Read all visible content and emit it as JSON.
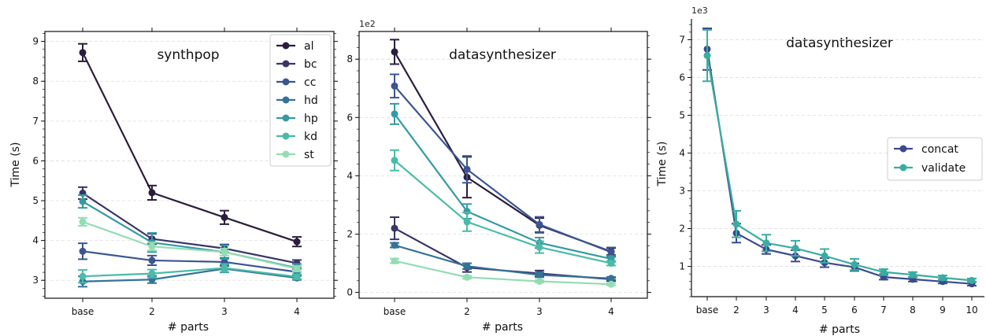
{
  "chart_data": [
    {
      "type": "line",
      "title": "synthpop",
      "xlabel": "# parts",
      "ylabel": "Time (s)",
      "x_scale_label": "",
      "y_scale_label": "",
      "categories": [
        "base",
        "2",
        "3",
        "4"
      ],
      "ylim": [
        2.55,
        9.25
      ],
      "yticks": [
        3,
        4,
        5,
        6,
        7,
        8,
        9
      ],
      "ytick_labels": [
        "3",
        "4",
        "5",
        "6",
        "7",
        "8",
        "9"
      ],
      "grid": "horizontal dashed",
      "legend": "top-right",
      "series": [
        {
          "name": "al",
          "color": "#2b1d3f",
          "values": [
            8.72,
            5.2,
            4.58,
            3.97
          ],
          "errors": [
            0.22,
            0.18,
            0.17,
            0.12
          ]
        },
        {
          "name": "bc",
          "color": "#3a3569",
          "values": [
            5.19,
            4.04,
            3.8,
            3.43
          ],
          "errors": [
            0.15,
            0.13,
            0.1,
            0.08
          ]
        },
        {
          "name": "cc",
          "color": "#3a5592",
          "values": [
            3.73,
            3.5,
            3.46,
            3.21
          ],
          "errors": [
            0.2,
            0.12,
            0.1,
            0.08
          ]
        },
        {
          "name": "hd",
          "color": "#357299",
          "values": [
            2.97,
            3.02,
            3.29,
            3.06
          ],
          "errors": [
            0.13,
            0.09,
            0.09,
            0.05
          ]
        },
        {
          "name": "hp",
          "color": "#359aa4",
          "values": [
            4.98,
            3.95,
            3.71,
            3.31
          ],
          "errors": [
            0.16,
            0.24,
            0.17,
            0.1
          ]
        },
        {
          "name": "kd",
          "color": "#4bbba8",
          "values": [
            3.1,
            3.17,
            3.31,
            3.09
          ],
          "errors": [
            0.16,
            0.1,
            0.1,
            0.06
          ]
        },
        {
          "name": "st",
          "color": "#93ddb4",
          "values": [
            4.47,
            3.85,
            3.71,
            3.29
          ],
          "errors": [
            0.1,
            0.1,
            0.09,
            0.07
          ]
        }
      ]
    },
    {
      "type": "line",
      "title": "datasynthesizer",
      "xlabel": "# parts",
      "ylabel": "",
      "x_scale_label": "",
      "y_scale_label": "1e2",
      "categories": [
        "base",
        "2",
        "3",
        "4"
      ],
      "ylim": [
        -0.2,
        8.95
      ],
      "yticks": [
        0,
        2,
        4,
        6,
        8
      ],
      "ytick_labels": [
        "0",
        "2",
        "4",
        "6",
        "8"
      ],
      "grid": "horizontal dashed",
      "legend": "none",
      "series": [
        {
          "color": "#2b1d3f",
          "values": [
            8.25,
            3.95,
            2.3,
            1.4
          ],
          "errors": [
            0.42,
            0.7,
            0.25,
            0.12
          ]
        },
        {
          "color": "#3a3569",
          "values": [
            2.2,
            0.85,
            0.65,
            0.45
          ],
          "errors": [
            0.38,
            0.15,
            0.1,
            0.06
          ]
        },
        {
          "color": "#3a5592",
          "values": [
            7.08,
            4.22,
            2.33,
            1.38
          ],
          "errors": [
            0.4,
            0.46,
            0.26,
            0.16
          ]
        },
        {
          "color": "#357299",
          "values": [
            1.62,
            0.9,
            0.6,
            0.48
          ],
          "errors": [
            0.08,
            0.1,
            0.08,
            0.05
          ]
        },
        {
          "color": "#359aa4",
          "values": [
            6.12,
            2.78,
            1.7,
            1.15
          ],
          "errors": [
            0.35,
            0.25,
            0.18,
            0.1
          ]
        },
        {
          "color": "#4bbba8",
          "values": [
            4.53,
            2.42,
            1.55,
            1.0
          ],
          "errors": [
            0.35,
            0.32,
            0.2,
            0.08
          ]
        },
        {
          "color": "#93ddb4",
          "values": [
            1.08,
            0.52,
            0.38,
            0.28
          ],
          "errors": [
            0.08,
            0.05,
            0.04,
            0.04
          ]
        }
      ]
    },
    {
      "type": "line",
      "title": "datasynthesizer",
      "xlabel": "# parts",
      "ylabel": "Time (s)",
      "x_scale_label": "",
      "y_scale_label": "1e3",
      "categories": [
        "base",
        "2",
        "3",
        "4",
        "5",
        "6",
        "7",
        "8",
        "9",
        "10"
      ],
      "ylim": [
        0.2,
        7.55
      ],
      "yticks": [
        1,
        2,
        3,
        4,
        5,
        6,
        7
      ],
      "ytick_labels": [
        "1",
        "2",
        "3",
        "4",
        "5",
        "6",
        "7"
      ],
      "grid": "horizontal dashed",
      "legend": "center-right",
      "series": [
        {
          "name": "concat",
          "color": "#3a4a8f",
          "values": [
            6.75,
            1.88,
            1.45,
            1.28,
            1.1,
            0.98,
            0.72,
            0.66,
            0.6,
            0.54
          ],
          "errors": [
            0.55,
            0.25,
            0.12,
            0.15,
            0.12,
            0.1,
            0.07,
            0.06,
            0.05,
            0.05
          ]
        },
        {
          "name": "validate",
          "color": "#3aada0",
          "values": [
            6.58,
            2.12,
            1.62,
            1.48,
            1.28,
            1.05,
            0.85,
            0.78,
            0.7,
            0.63
          ],
          "errors": [
            0.68,
            0.35,
            0.22,
            0.2,
            0.18,
            0.15,
            0.08,
            0.07,
            0.06,
            0.05
          ]
        }
      ]
    }
  ]
}
